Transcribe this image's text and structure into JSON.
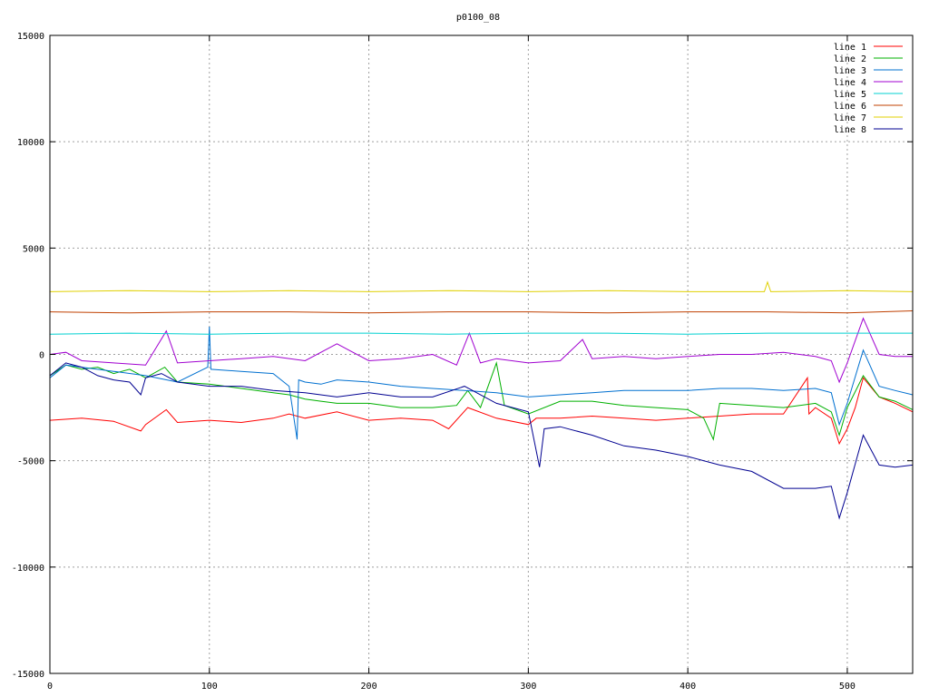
{
  "chart_data": {
    "type": "line",
    "title": "p0100_08",
    "xlabel": "",
    "ylabel": "",
    "xlim": [
      0,
      541
    ],
    "ylim": [
      -15000,
      15000
    ],
    "x_ticks": [
      0,
      100,
      200,
      300,
      400,
      500
    ],
    "y_ticks": [
      -15000,
      -10000,
      -5000,
      0,
      5000,
      10000,
      15000
    ],
    "grid": true,
    "legend_position": "top-right",
    "series": [
      {
        "name": "line 1",
        "color": "#ff0000",
        "x": [
          0,
          20,
          40,
          57,
          60,
          73,
          80,
          100,
          120,
          140,
          150,
          160,
          180,
          200,
          220,
          240,
          250,
          262,
          280,
          300,
          305,
          320,
          340,
          360,
          380,
          400,
          420,
          440,
          460,
          475,
          476,
          480,
          490,
          495,
          500,
          505,
          510,
          520,
          530,
          541
        ],
        "values": [
          -3100,
          -3000,
          -3150,
          -3600,
          -3300,
          -2600,
          -3200,
          -3100,
          -3200,
          -3000,
          -2800,
          -3000,
          -2700,
          -3100,
          -3000,
          -3100,
          -3500,
          -2500,
          -3000,
          -3300,
          -3000,
          -3000,
          -2900,
          -3000,
          -3100,
          -3000,
          -2900,
          -2800,
          -2800,
          -1100,
          -2800,
          -2500,
          -3000,
          -4200,
          -3500,
          -2500,
          -1100,
          -2000,
          -2300,
          -2700
        ]
      },
      {
        "name": "line 2",
        "color": "#00b000",
        "x": [
          0,
          10,
          20,
          30,
          40,
          50,
          60,
          72,
          80,
          100,
          120,
          140,
          150,
          160,
          170,
          180,
          200,
          220,
          240,
          255,
          262,
          270,
          280,
          285,
          300,
          320,
          340,
          360,
          380,
          400,
          410,
          416,
          420,
          440,
          460,
          480,
          490,
          495,
          500,
          510,
          520,
          530,
          541
        ],
        "values": [
          -1000,
          -500,
          -700,
          -600,
          -900,
          -700,
          -1100,
          -600,
          -1300,
          -1400,
          -1600,
          -1800,
          -1900,
          -2100,
          -2200,
          -2300,
          -2300,
          -2500,
          -2500,
          -2400,
          -1700,
          -2500,
          -400,
          -2400,
          -2800,
          -2200,
          -2200,
          -2400,
          -2500,
          -2600,
          -3000,
          -4000,
          -2300,
          -2400,
          -2500,
          -2300,
          -2700,
          -3800,
          -2500,
          -1000,
          -2000,
          -2200,
          -2600
        ]
      },
      {
        "name": "line 3",
        "color": "#0070d0",
        "x": [
          0,
          10,
          20,
          40,
          60,
          80,
          99,
          100,
          101,
          120,
          140,
          150,
          155,
          156,
          160,
          170,
          180,
          200,
          220,
          240,
          260,
          280,
          300,
          320,
          340,
          360,
          380,
          400,
          420,
          440,
          460,
          480,
          490,
          495,
          500,
          510,
          520,
          530,
          541
        ],
        "values": [
          -1100,
          -500,
          -600,
          -800,
          -1000,
          -1300,
          -600,
          1300,
          -700,
          -800,
          -900,
          -1500,
          -4000,
          -1200,
          -1300,
          -1400,
          -1200,
          -1300,
          -1500,
          -1600,
          -1700,
          -1800,
          -2000,
          -1900,
          -1800,
          -1700,
          -1700,
          -1700,
          -1600,
          -1600,
          -1700,
          -1600,
          -1800,
          -3300,
          -2300,
          200,
          -1500,
          -1700,
          -1900
        ]
      },
      {
        "name": "line 4",
        "color": "#a000d0",
        "x": [
          0,
          10,
          20,
          40,
          60,
          73,
          80,
          100,
          120,
          140,
          160,
          180,
          200,
          220,
          240,
          255,
          263,
          270,
          280,
          300,
          320,
          334,
          340,
          360,
          380,
          400,
          420,
          440,
          460,
          480,
          490,
          495,
          500,
          510,
          520,
          530,
          541
        ],
        "values": [
          0,
          100,
          -300,
          -400,
          -500,
          1100,
          -400,
          -300,
          -200,
          -100,
          -300,
          500,
          -300,
          -200,
          0,
          -500,
          1000,
          -400,
          -200,
          -400,
          -300,
          700,
          -200,
          -100,
          -200,
          -100,
          0,
          0,
          100,
          -100,
          -300,
          -1300,
          -400,
          1700,
          0,
          -100,
          -100
        ]
      },
      {
        "name": "line 5",
        "color": "#00d0d0",
        "x": [
          0,
          50,
          100,
          150,
          200,
          250,
          300,
          350,
          400,
          450,
          500,
          541
        ],
        "values": [
          950,
          1000,
          950,
          1000,
          1000,
          950,
          1000,
          1000,
          950,
          1000,
          1000,
          1000
        ]
      },
      {
        "name": "line 6",
        "color": "#c04000",
        "x": [
          0,
          50,
          100,
          150,
          200,
          250,
          300,
          350,
          400,
          450,
          500,
          541
        ],
        "values": [
          2000,
          1950,
          2000,
          2000,
          1950,
          2000,
          2000,
          1950,
          2000,
          2000,
          1950,
          2050
        ]
      },
      {
        "name": "line 7",
        "color": "#e0d000",
        "x": [
          0,
          50,
          100,
          150,
          200,
          250,
          300,
          350,
          400,
          448,
          450,
          452,
          500,
          541
        ],
        "values": [
          2950,
          3000,
          2950,
          3000,
          2950,
          3000,
          2950,
          3000,
          2950,
          2950,
          3400,
          2950,
          3000,
          2950
        ]
      },
      {
        "name": "line 8",
        "color": "#000090",
        "x": [
          0,
          10,
          20,
          30,
          40,
          50,
          57,
          60,
          70,
          80,
          100,
          120,
          140,
          160,
          180,
          200,
          220,
          240,
          260,
          280,
          300,
          307,
          310,
          320,
          340,
          360,
          380,
          400,
          420,
          440,
          460,
          480,
          490,
          495,
          500,
          510,
          520,
          530,
          541
        ],
        "values": [
          -1000,
          -400,
          -600,
          -1000,
          -1200,
          -1300,
          -1900,
          -1100,
          -900,
          -1300,
          -1500,
          -1500,
          -1700,
          -1800,
          -2000,
          -1800,
          -2000,
          -2000,
          -1500,
          -2300,
          -2700,
          -5300,
          -3500,
          -3400,
          -3800,
          -4300,
          -4500,
          -4800,
          -5200,
          -5500,
          -6300,
          -6300,
          -6200,
          -7700,
          -6500,
          -3800,
          -5200,
          -5300,
          -5200
        ]
      }
    ]
  }
}
